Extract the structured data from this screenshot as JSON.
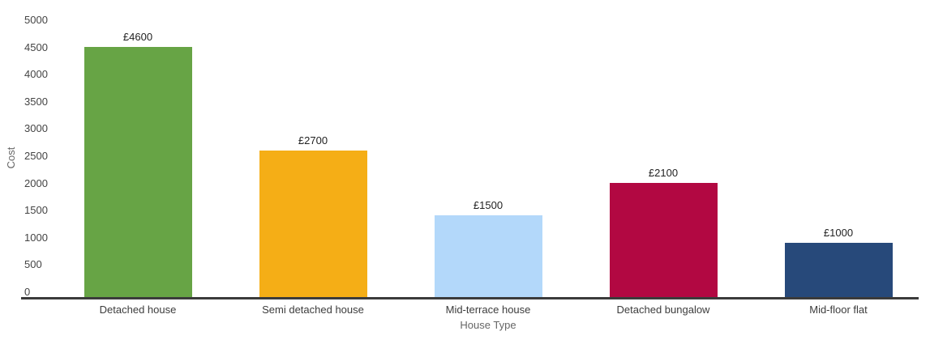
{
  "chart_data": {
    "type": "bar",
    "title": "",
    "categories": [
      "Detached house",
      "Semi detached house",
      "Mid-terrace house",
      "Detached bungalow",
      "Mid-floor flat"
    ],
    "values": [
      4600,
      2700,
      1500,
      2100,
      1000
    ],
    "bar_labels": [
      "£4600",
      "£2700",
      "£1500",
      "£2100",
      "£1000"
    ],
    "bar_colors": [
      "#67a445",
      "#f5ae16",
      "#b3d8fa",
      "#b20842",
      "#27497a"
    ],
    "xlabel": "House Type",
    "ylabel": "Cost",
    "ylim": [
      0,
      5000
    ],
    "ytick_step": 500,
    "yticks": [
      0,
      500,
      1000,
      1500,
      2000,
      2500,
      3000,
      3500,
      4000,
      4500,
      5000
    ],
    "grid": false,
    "legend": "none",
    "background_color": "#ffffff",
    "axis_line_color": "#3b3b3b",
    "ytick_color": "#444444",
    "xtick_color": "#3c3c3c",
    "axis_title_color": "#666666",
    "value_label_color": "#222222"
  }
}
